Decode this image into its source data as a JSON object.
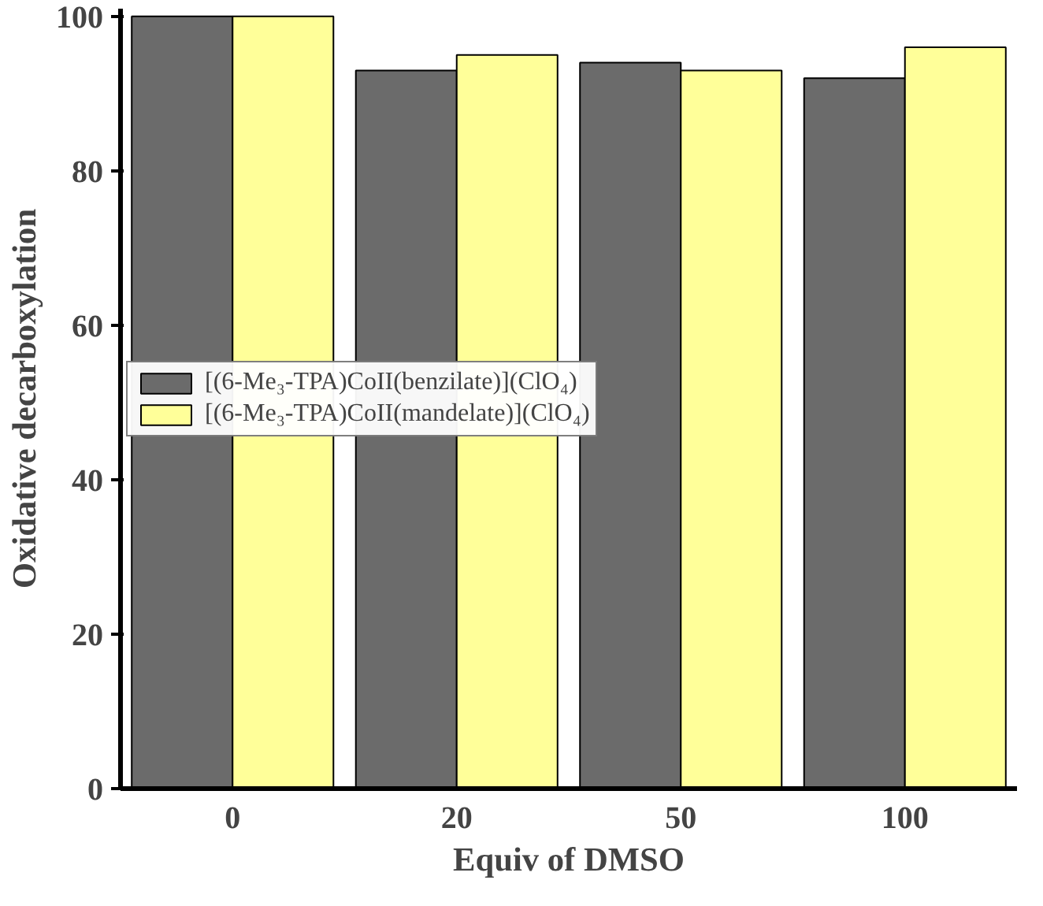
{
  "chart_data": {
    "type": "bar",
    "xlabel": "Equiv of DMSO",
    "ylabel": "Oxidative decarboxylation",
    "categories": [
      "0",
      "20",
      "50",
      "100"
    ],
    "series": [
      {
        "name": "[(6-Me₃-TPA)CoII(benzilate)](ClO₄)",
        "color": "#6b6b6b",
        "values": [
          100,
          93,
          94,
          92
        ]
      },
      {
        "name": "[(6-Me₃-TPA)CoII(mandelate)](ClO₄)",
        "color": "#ffff99",
        "values": [
          100,
          95,
          93,
          96
        ]
      }
    ],
    "ylim": [
      0,
      101
    ],
    "yticks": [
      0,
      20,
      40,
      60,
      80,
      100
    ],
    "grid": false,
    "legend": "center left"
  }
}
